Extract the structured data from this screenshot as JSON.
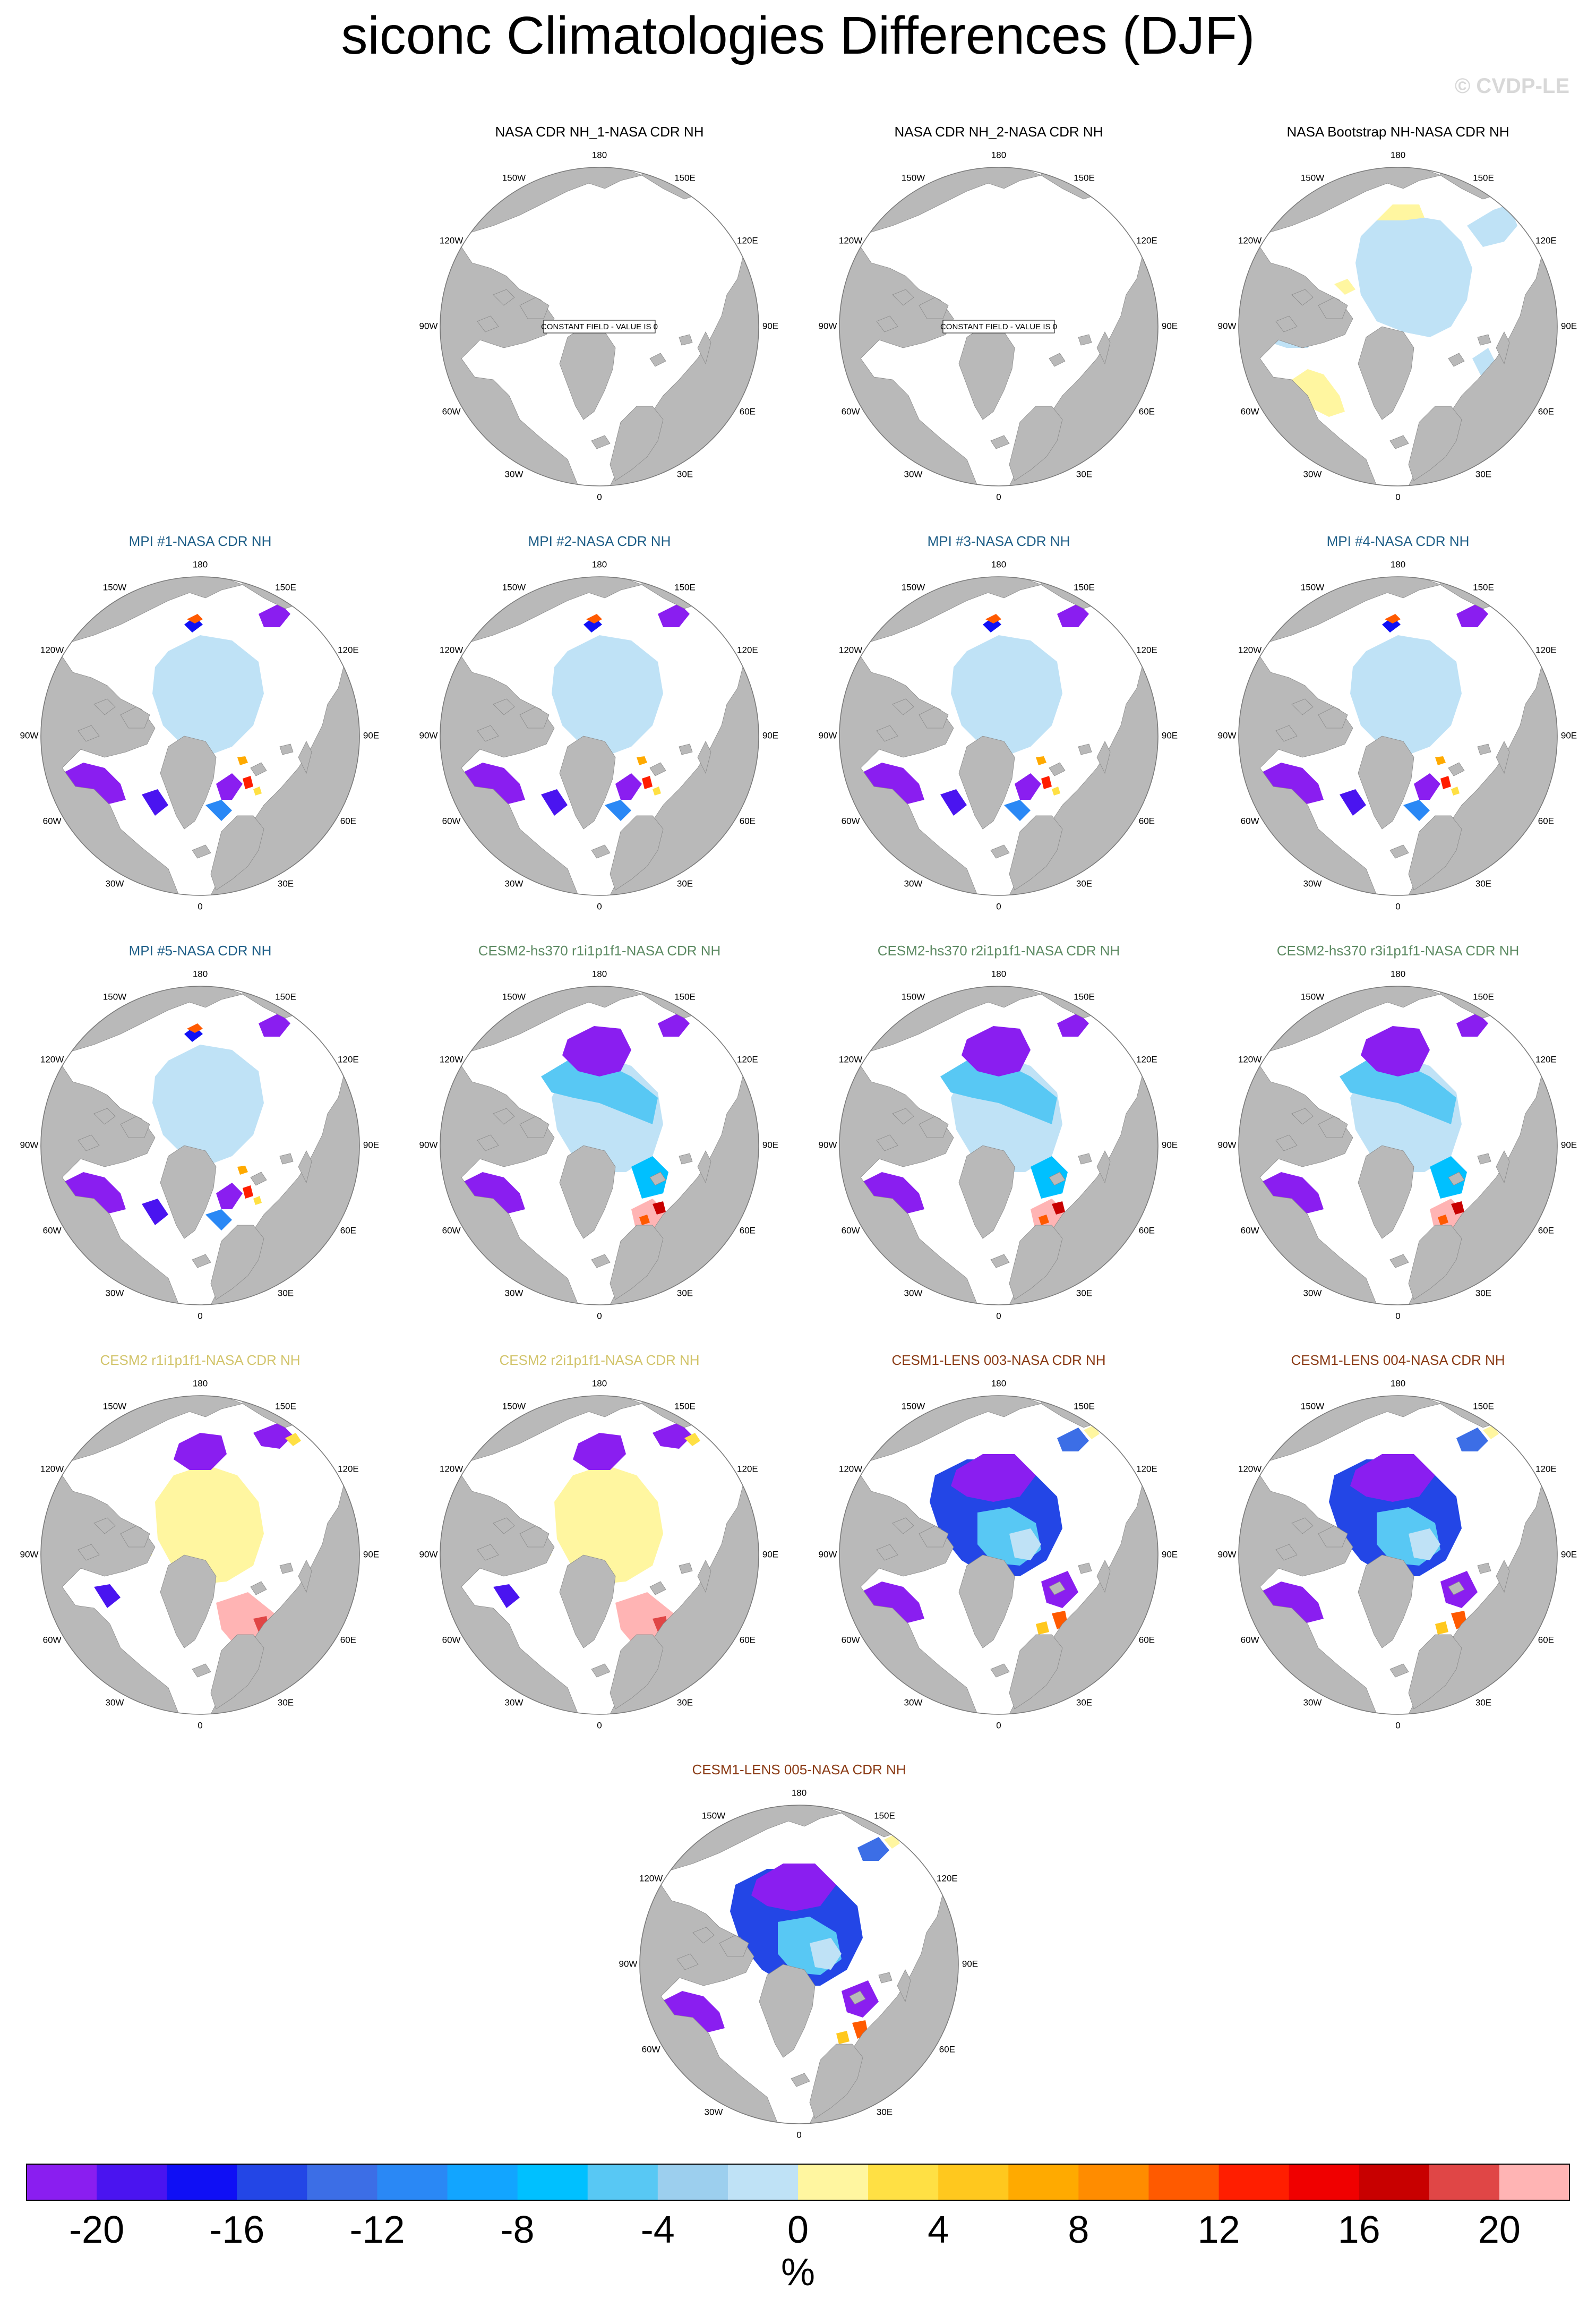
{
  "title": "siconc Climatologies Differences (DJF)",
  "watermark": "© CVDP-LE",
  "lon_labels": [
    "180",
    "150E",
    "120E",
    "90E",
    "60E",
    "30E",
    "0",
    "30W",
    "60W",
    "90W",
    "120W",
    "150W"
  ],
  "constant_field_text": "CONSTANT FIELD - VALUE IS 0",
  "colors": {
    "land": "#b9b9b9",
    "ocean": "#ffffff",
    "title_obs": "#000000",
    "title_mpi": "#1f5f88",
    "title_cesm2hs": "#5c8a62",
    "title_cesm2": "#d2c46a",
    "title_lens": "#8a3a14"
  },
  "panels": [
    {
      "title": "NASA CDR NH_1-NASA CDR NH",
      "group": "obs",
      "pattern": "constant"
    },
    {
      "title": "NASA CDR NH_2-NASA CDR NH",
      "group": "obs",
      "pattern": "constant"
    },
    {
      "title": "NASA Bootstrap NH-NASA CDR NH",
      "group": "obs",
      "pattern": "bootstrap"
    },
    {
      "title": "MPI #1-NASA CDR NH",
      "group": "mpi",
      "pattern": "mpi"
    },
    {
      "title": "MPI #2-NASA CDR NH",
      "group": "mpi",
      "pattern": "mpi"
    },
    {
      "title": "MPI #3-NASA CDR NH",
      "group": "mpi",
      "pattern": "mpi"
    },
    {
      "title": "MPI #4-NASA CDR NH",
      "group": "mpi",
      "pattern": "mpi"
    },
    {
      "title": "MPI #5-NASA CDR NH",
      "group": "mpi",
      "pattern": "mpi"
    },
    {
      "title": "CESM2-hs370 r1i1p1f1-NASA CDR NH",
      "group": "cesm2hs",
      "pattern": "cesm2hs"
    },
    {
      "title": "CESM2-hs370 r2i1p1f1-NASA CDR NH",
      "group": "cesm2hs",
      "pattern": "cesm2hs"
    },
    {
      "title": "CESM2-hs370 r3i1p1f1-NASA CDR NH",
      "group": "cesm2hs",
      "pattern": "cesm2hs"
    },
    {
      "title": "CESM2 r1i1p1f1-NASA CDR NH",
      "group": "cesm2",
      "pattern": "cesm2"
    },
    {
      "title": "CESM2 r2i1p1f1-NASA CDR NH",
      "group": "cesm2",
      "pattern": "cesm2"
    },
    {
      "title": "CESM1-LENS 003-NASA CDR NH",
      "group": "lens",
      "pattern": "lens"
    },
    {
      "title": "CESM1-LENS 004-NASA CDR NH",
      "group": "lens",
      "pattern": "lens"
    },
    {
      "title": "CESM1-LENS 005-NASA CDR NH",
      "group": "lens",
      "pattern": "lens"
    }
  ],
  "colorbar": {
    "colors": [
      "#8a1ef0",
      "#4a14f0",
      "#0f0ff5",
      "#2346e6",
      "#3c6ee6",
      "#2a88f5",
      "#12a5ff",
      "#00c0ff",
      "#58c8f4",
      "#9ccfee",
      "#bfe2f6",
      "#fff6a0",
      "#ffe044",
      "#ffc81e",
      "#ffaa00",
      "#ff8c00",
      "#ff5a00",
      "#ff1e00",
      "#f00000",
      "#c80000",
      "#e04646",
      "#ffb4b4"
    ],
    "ticks": [
      "-20",
      "-16",
      "-12",
      "-8",
      "-4",
      "0",
      "4",
      "8",
      "12",
      "16",
      "20"
    ],
    "unit": "%"
  }
}
